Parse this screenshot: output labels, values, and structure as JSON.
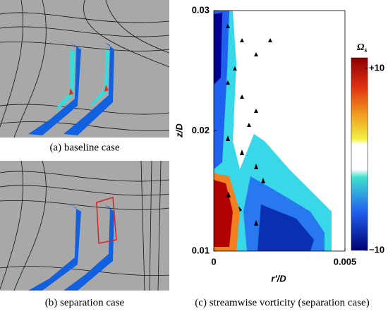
{
  "panels": [
    {
      "caption": "(a) baseline case"
    },
    {
      "caption": "(b) separation case"
    }
  ],
  "plot": {
    "caption": "(c) streamwise vorticity (separation case)",
    "x_label": "r′/D",
    "y_label": "z/D",
    "xlim": [
      0,
      0.005
    ],
    "xticks": [
      0,
      0.005
    ],
    "ylim": [
      0.01,
      0.03
    ],
    "yticks": [
      0.01,
      0.02,
      0.03
    ],
    "colorbar": {
      "symbol": "Ω",
      "subscript": "s",
      "limits": [
        -10,
        10
      ],
      "ticks": [
        {
          "value": 10,
          "label": "+10"
        },
        {
          "value": -10,
          "label": "−10"
        }
      ]
    }
  }
}
